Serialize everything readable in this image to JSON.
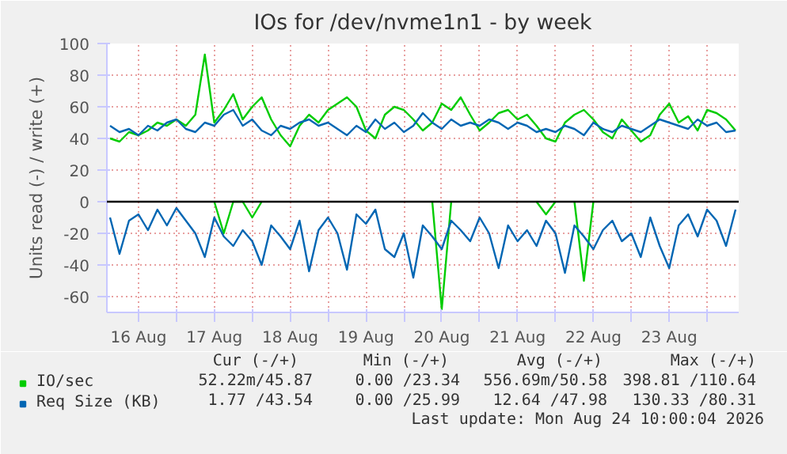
{
  "chart_data": {
    "type": "line",
    "title": "IOs for /dev/nvme1n1 - by week",
    "ylabel": "Units read (-) / write (+)",
    "x": [
      "2026-08-16T03:00",
      "2026-08-16T06:00",
      "2026-08-16T09:00",
      "2026-08-16T12:00",
      "2026-08-16T15:00",
      "2026-08-16T18:00",
      "2026-08-16T21:00",
      "2026-08-17T00:00",
      "2026-08-17T03:00",
      "2026-08-17T06:00",
      "2026-08-17T09:00",
      "2026-08-17T12:00",
      "2026-08-17T15:00",
      "2026-08-17T18:00",
      "2026-08-17T21:00",
      "2026-08-18T00:00",
      "2026-08-18T03:00",
      "2026-08-18T06:00",
      "2026-08-18T09:00",
      "2026-08-18T12:00",
      "2026-08-18T15:00",
      "2026-08-18T18:00",
      "2026-08-18T21:00",
      "2026-08-19T00:00",
      "2026-08-19T03:00",
      "2026-08-19T06:00",
      "2026-08-19T09:00",
      "2026-08-19T12:00",
      "2026-08-19T15:00",
      "2026-08-19T18:00",
      "2026-08-19T21:00",
      "2026-08-20T00:00",
      "2026-08-20T03:00",
      "2026-08-20T06:00",
      "2026-08-20T09:00",
      "2026-08-20T12:00",
      "2026-08-20T15:00",
      "2026-08-20T18:00",
      "2026-08-20T21:00",
      "2026-08-21T00:00",
      "2026-08-21T03:00",
      "2026-08-21T06:00",
      "2026-08-21T09:00",
      "2026-08-21T12:00",
      "2026-08-21T15:00",
      "2026-08-21T18:00",
      "2026-08-21T21:00",
      "2026-08-22T00:00",
      "2026-08-22T03:00",
      "2026-08-22T06:00",
      "2026-08-22T09:00",
      "2026-08-22T12:00",
      "2026-08-22T15:00",
      "2026-08-22T18:00",
      "2026-08-22T21:00",
      "2026-08-23T00:00",
      "2026-08-23T03:00",
      "2026-08-23T06:00",
      "2026-08-23T09:00",
      "2026-08-23T12:00",
      "2026-08-23T15:00",
      "2026-08-23T18:00",
      "2026-08-23T21:00",
      "2026-08-24T00:00",
      "2026-08-24T03:00",
      "2026-08-24T06:00",
      "2026-08-24T09:00"
    ],
    "xlim": [
      "2026-08-16T02:00",
      "2026-08-24T10:00"
    ],
    "xticks": [
      {
        "value": "2026-08-16T12:00",
        "label": "16 Aug"
      },
      {
        "value": "2026-08-17T00:00",
        "label": null
      },
      {
        "value": "2026-08-17T12:00",
        "label": "17 Aug"
      },
      {
        "value": "2026-08-18T00:00",
        "label": null
      },
      {
        "value": "2026-08-18T12:00",
        "label": "18 Aug"
      },
      {
        "value": "2026-08-19T00:00",
        "label": null
      },
      {
        "value": "2026-08-19T12:00",
        "label": "19 Aug"
      },
      {
        "value": "2026-08-20T00:00",
        "label": null
      },
      {
        "value": "2026-08-20T12:00",
        "label": "20 Aug"
      },
      {
        "value": "2026-08-21T00:00",
        "label": null
      },
      {
        "value": "2026-08-21T12:00",
        "label": "21 Aug"
      },
      {
        "value": "2026-08-22T00:00",
        "label": null
      },
      {
        "value": "2026-08-22T12:00",
        "label": "22 Aug"
      },
      {
        "value": "2026-08-23T00:00",
        "label": null
      },
      {
        "value": "2026-08-23T12:00",
        "label": "23 Aug"
      },
      {
        "value": "2026-08-24T00:00",
        "label": null
      }
    ],
    "ylim": [
      -70,
      100
    ],
    "yticks": [
      -60,
      -40,
      -20,
      0,
      20,
      40,
      60,
      80,
      100
    ],
    "grid": true,
    "legend": "bottom left",
    "line_style": "solid",
    "ref_lines": [
      {
        "axis": "y",
        "value": 0,
        "color": "#000000"
      }
    ],
    "series": [
      {
        "name": "IO/sec",
        "color": "#00cc00",
        "values": [
          40,
          38,
          44,
          42,
          45,
          50,
          48,
          52,
          48,
          55,
          93,
          50,
          58,
          68,
          52,
          60,
          66,
          52,
          42,
          35,
          48,
          55,
          50,
          58,
          62,
          66,
          60,
          45,
          40,
          55,
          60,
          58,
          52,
          45,
          50,
          62,
          58,
          66,
          55,
          45,
          50,
          56,
          58,
          52,
          55,
          48,
          40,
          38,
          50,
          55,
          58,
          52,
          44,
          40,
          52,
          45,
          38,
          42,
          55,
          62,
          50,
          54,
          45,
          58,
          56,
          52,
          45
        ]
      },
      {
        "name": "Req Size (KB)",
        "color": "#0066b3",
        "values": [
          48,
          44,
          46,
          42,
          48,
          45,
          50,
          52,
          46,
          44,
          50,
          48,
          55,
          58,
          48,
          52,
          45,
          42,
          48,
          46,
          50,
          52,
          48,
          50,
          46,
          42,
          48,
          44,
          52,
          46,
          50,
          44,
          48,
          56,
          50,
          46,
          52,
          48,
          50,
          48,
          52,
          50,
          46,
          50,
          48,
          44,
          46,
          44,
          48,
          46,
          42,
          50,
          46,
          44,
          48,
          46,
          44,
          48,
          52,
          50,
          48,
          46,
          52,
          48,
          50,
          44,
          45
        ]
      },
      {
        "color": "#00cc00",
        "values": [
          null,
          null,
          null,
          null,
          null,
          null,
          null,
          null,
          null,
          null,
          null,
          0,
          -20,
          0,
          0,
          -10,
          0,
          null,
          null,
          null,
          null,
          null,
          null,
          null,
          null,
          null,
          null,
          null,
          null,
          null,
          null,
          null,
          null,
          null,
          0,
          -68,
          0,
          null,
          null,
          null,
          null,
          null,
          null,
          null,
          null,
          0,
          -8,
          0,
          null,
          0,
          -50,
          0,
          null,
          null,
          null,
          null,
          null,
          null,
          null,
          null,
          null,
          null,
          null,
          null,
          null,
          null,
          null
        ]
      },
      {
        "color": "#0066b3",
        "values": [
          -10,
          -33,
          -12,
          -8,
          -18,
          -5,
          -15,
          -4,
          -12,
          -20,
          -35,
          -10,
          -22,
          -28,
          -18,
          -25,
          -40,
          -15,
          -22,
          -30,
          -12,
          -44,
          -18,
          -10,
          -20,
          -43,
          -8,
          -14,
          -5,
          -30,
          -35,
          -20,
          -48,
          -15,
          -22,
          -30,
          -12,
          -18,
          -25,
          -10,
          -20,
          -42,
          -15,
          -25,
          -18,
          -28,
          -12,
          -20,
          -45,
          -15,
          -22,
          -30,
          -18,
          -12,
          -25,
          -20,
          -35,
          -10,
          -28,
          -42,
          -15,
          -8,
          -22,
          -5,
          -12,
          -28,
          -5
        ]
      }
    ],
    "annotations": [
      "Cur (-/+)",
      "Min (-/+)",
      "Avg (-/+)",
      "Max (-/+)",
      "52.22m/45.87",
      "0.00 /23.34",
      "556.69m/50.58",
      "398.81 /110.64",
      "1.77 /43.54",
      "0.00 /25.99",
      "12.64 /47.98",
      "130.33 /80.31",
      "Last update: Mon Aug 24 10:00:04 2026"
    ]
  }
}
